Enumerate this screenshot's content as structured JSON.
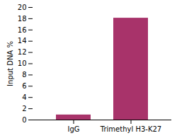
{
  "chart_data": {
    "type": "bar",
    "categories": [
      "IgG",
      "Trimethyl H3-K27"
    ],
    "values": [
      0.9,
      18.1
    ],
    "color": "#a8336a",
    "ylabel": "Input DNA %",
    "ylim": [
      0,
      20
    ],
    "yticks": [
      0,
      2,
      4,
      6,
      8,
      10,
      12,
      14,
      16,
      18,
      20
    ]
  }
}
